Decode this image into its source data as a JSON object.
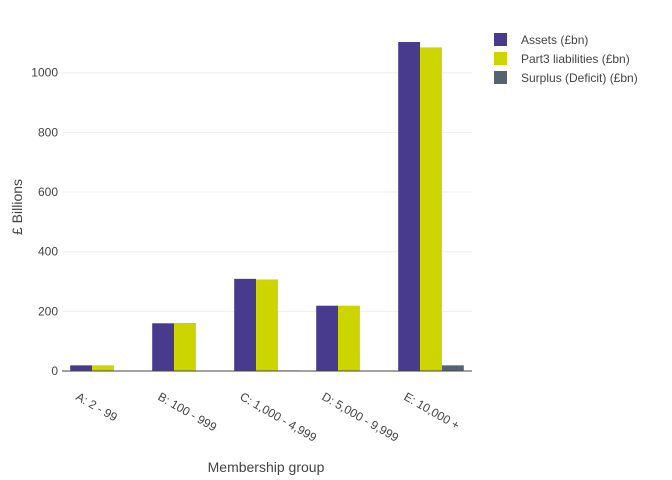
{
  "chart_data": {
    "type": "bar",
    "xlabel": "Membership group",
    "ylabel": "£ Billions",
    "ylim": [
      -10,
      1150
    ],
    "yticks": [
      0,
      200,
      400,
      600,
      800,
      1000
    ],
    "ytick_labels": [
      "0",
      "200",
      "400",
      "600",
      "800",
      "1000"
    ],
    "grid": true,
    "legend_position": "top-right",
    "categories": [
      "A: 2 - 99",
      "B: 100 - 999",
      "C: 1,000 - 4,999",
      "D: 5,000 - 9,999",
      "E: 10,000 +"
    ],
    "series": [
      {
        "name": "Assets (£bn)",
        "color": "#483a8c",
        "values": [
          19,
          160,
          309,
          219,
          1103
        ]
      },
      {
        "name": "Part3 liabilities (£bn)",
        "color": "#cdd500",
        "values": [
          19,
          161,
          307,
          219,
          1085
        ]
      },
      {
        "name": "Surplus (Deficit) (£bn)",
        "color": "#556270",
        "values": [
          0,
          -1,
          2,
          0,
          19
        ]
      }
    ]
  }
}
